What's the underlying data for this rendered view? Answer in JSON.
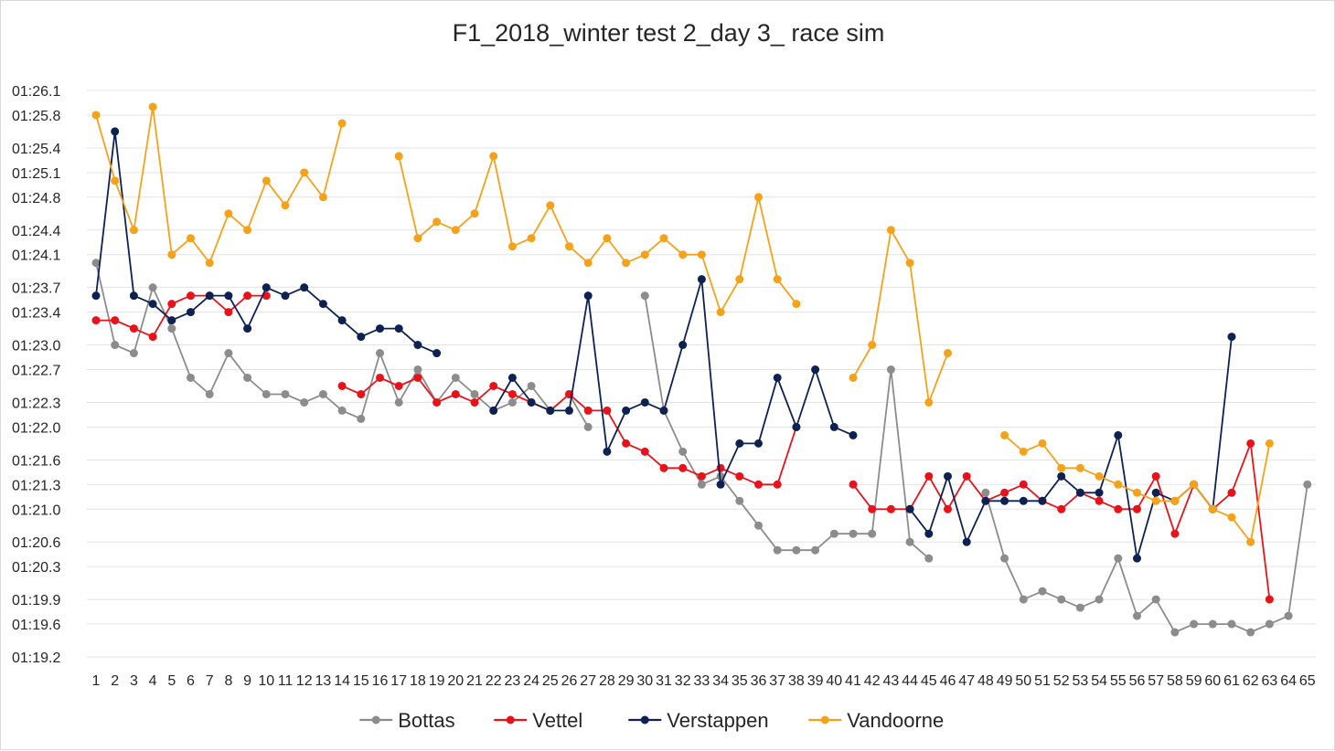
{
  "chart_data": {
    "type": "line",
    "title": "F1_2018_winter test 2_day 3_ race sim",
    "xlabel": "",
    "ylabel": "",
    "y_unit": "lap time (seconds)",
    "ylim": [
      79.2,
      86.1
    ],
    "y_ticks": [
      79.2,
      79.6,
      79.9,
      80.3,
      80.6,
      81.0,
      81.3,
      81.6,
      82.0,
      82.3,
      82.7,
      83.0,
      83.4,
      83.7,
      84.1,
      84.4,
      84.8,
      85.1,
      85.4,
      85.8,
      86.1
    ],
    "y_tick_labels": [
      "01:19.2",
      "01:19.6",
      "01:19.9",
      "01:20.3",
      "01:20.6",
      "01:21.0",
      "01:21.3",
      "01:21.6",
      "01:22.0",
      "01:22.3",
      "01:22.7",
      "01:23.0",
      "01:23.4",
      "01:23.7",
      "01:24.1",
      "01:24.4",
      "01:24.8",
      "01:25.1",
      "01:25.4",
      "01:25.8",
      "01:26.1"
    ],
    "x": [
      1,
      2,
      3,
      4,
      5,
      6,
      7,
      8,
      9,
      10,
      11,
      12,
      13,
      14,
      15,
      16,
      17,
      18,
      19,
      20,
      21,
      22,
      23,
      24,
      25,
      26,
      27,
      28,
      29,
      30,
      31,
      32,
      33,
      34,
      35,
      36,
      37,
      38,
      39,
      40,
      41,
      42,
      43,
      44,
      45,
      46,
      47,
      48,
      49,
      50,
      51,
      52,
      53,
      54,
      55,
      56,
      57,
      58,
      59,
      60,
      61,
      62,
      63,
      64,
      65
    ],
    "legend_position": "bottom",
    "grid": true,
    "series": [
      {
        "name": "Bottas",
        "color": "#8c8c8c",
        "values": [
          84.0,
          83.0,
          82.9,
          83.7,
          83.2,
          82.6,
          82.4,
          82.9,
          82.6,
          82.4,
          82.4,
          82.3,
          82.4,
          82.2,
          82.1,
          82.9,
          82.3,
          82.7,
          82.3,
          82.6,
          82.4,
          82.2,
          82.3,
          82.5,
          82.2,
          82.4,
          82.0,
          null,
          null,
          83.6,
          82.2,
          81.7,
          81.3,
          81.4,
          81.1,
          80.8,
          80.5,
          80.5,
          80.5,
          80.7,
          80.7,
          80.7,
          82.7,
          80.6,
          80.4,
          null,
          null,
          81.2,
          80.4,
          79.9,
          80.0,
          79.9,
          79.8,
          79.9,
          80.4,
          79.7,
          79.9,
          79.5,
          79.6,
          79.6,
          79.6,
          79.5,
          79.6,
          79.7,
          81.3
        ]
      },
      {
        "name": "Vettel",
        "color": "#e8131a",
        "values": [
          83.3,
          83.3,
          83.2,
          83.1,
          83.5,
          83.6,
          83.6,
          83.4,
          83.6,
          83.6,
          null,
          null,
          null,
          82.5,
          82.4,
          82.6,
          82.5,
          82.6,
          82.3,
          82.4,
          82.3,
          82.5,
          82.4,
          82.3,
          82.2,
          82.4,
          82.2,
          82.2,
          81.8,
          81.7,
          81.5,
          81.5,
          81.4,
          81.5,
          81.4,
          81.3,
          81.3,
          82.0,
          null,
          null,
          81.3,
          81.0,
          81.0,
          81.0,
          81.4,
          81.0,
          81.4,
          81.1,
          81.2,
          81.3,
          81.1,
          81.0,
          81.2,
          81.1,
          81.0,
          81.0,
          81.4,
          80.7,
          81.3,
          81.0,
          81.2,
          81.8,
          79.9,
          null,
          null
        ]
      },
      {
        "name": "Verstappen",
        "color": "#0d2252",
        "values": [
          83.6,
          85.6,
          83.6,
          83.5,
          83.3,
          83.4,
          83.6,
          83.6,
          83.2,
          83.7,
          83.6,
          83.7,
          83.5,
          83.3,
          83.1,
          83.2,
          83.2,
          83.0,
          82.9,
          null,
          null,
          82.2,
          82.6,
          82.3,
          82.2,
          82.2,
          83.6,
          81.7,
          82.2,
          82.3,
          82.2,
          83.0,
          83.8,
          81.3,
          81.8,
          81.8,
          82.6,
          82.0,
          82.7,
          82.0,
          81.9,
          null,
          null,
          81.0,
          80.7,
          81.4,
          80.6,
          81.1,
          81.1,
          81.1,
          81.1,
          81.4,
          81.2,
          81.2,
          81.9,
          80.4,
          81.2,
          81.1,
          81.3,
          81.0,
          83.1,
          null,
          null,
          null,
          null
        ]
      },
      {
        "name": "Vandoorne",
        "color": "#f5a21b",
        "values": [
          85.8,
          85.0,
          84.4,
          85.9,
          84.1,
          84.3,
          84.0,
          84.6,
          84.4,
          85.0,
          84.7,
          85.1,
          84.8,
          85.7,
          null,
          null,
          85.3,
          84.3,
          84.5,
          84.4,
          84.6,
          85.3,
          84.2,
          84.3,
          84.7,
          84.2,
          84.0,
          84.3,
          84.0,
          84.1,
          84.3,
          84.1,
          84.1,
          83.4,
          83.8,
          84.8,
          83.8,
          83.5,
          null,
          null,
          82.6,
          83.0,
          84.4,
          84.0,
          82.3,
          82.9,
          null,
          null,
          81.9,
          81.7,
          81.8,
          81.5,
          81.5,
          81.4,
          81.3,
          81.2,
          81.1,
          81.1,
          81.3,
          81.0,
          80.9,
          80.6,
          81.8,
          null,
          null
        ]
      }
    ]
  }
}
